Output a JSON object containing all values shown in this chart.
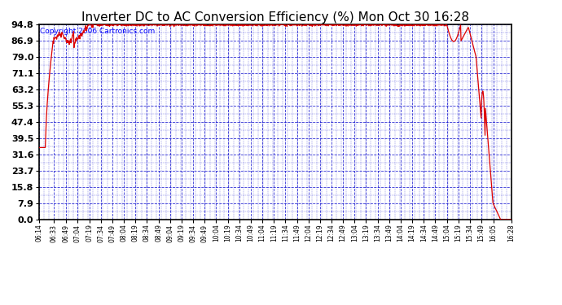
{
  "title": "Inverter DC to AC Conversion Efficiency (%) Mon Oct 30 16:28",
  "copyright": "Copyright 2006 Cartronics.com",
  "yticks": [
    0.0,
    7.9,
    15.8,
    23.7,
    31.6,
    39.5,
    47.4,
    55.3,
    63.2,
    71.1,
    79.0,
    86.9,
    94.8
  ],
  "ymin": 0.0,
  "ymax": 94.8,
  "line_color": "#dd0000",
  "background_color": "#ffffff",
  "grid_color": "#0000cc",
  "title_fontsize": 11,
  "copyright_fontsize": 6.5,
  "xtick_fontsize": 5.5,
  "ytick_fontsize": 8,
  "xtick_labels": [
    "06:14",
    "06:33",
    "06:49",
    "07:04",
    "07:19",
    "07:34",
    "07:49",
    "08:04",
    "08:19",
    "08:34",
    "08:49",
    "09:04",
    "09:19",
    "09:34",
    "09:49",
    "10:04",
    "10:19",
    "10:34",
    "10:49",
    "11:04",
    "11:19",
    "11:34",
    "11:49",
    "12:04",
    "12:19",
    "12:34",
    "12:49",
    "13:04",
    "13:19",
    "13:34",
    "13:49",
    "14:04",
    "14:19",
    "14:34",
    "14:49",
    "15:04",
    "15:19",
    "15:34",
    "15:49",
    "16:05",
    "16:28"
  ]
}
